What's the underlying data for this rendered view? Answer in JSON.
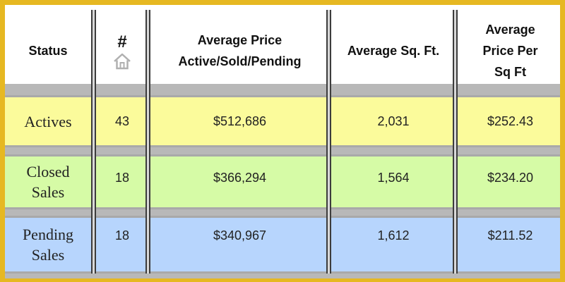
{
  "header": {
    "status": "Status",
    "count": "#",
    "count_icon": "house-icon",
    "avg_price_line1": "Average Price",
    "avg_price_line2": "Active/Sold/Pending",
    "avg_sqft": "Average Sq. Ft.",
    "ppsf_line1": "Average",
    "ppsf_line2": "Price Per",
    "ppsf_line3": "Sq Ft"
  },
  "rows": [
    {
      "status": "Actives",
      "status_line2": "",
      "count": "43",
      "avg_price": "$512,686",
      "avg_sqft": "2,031",
      "ppsf": "$252.43"
    },
    {
      "status": "Closed",
      "status_line2": "Sales",
      "count": "18",
      "avg_price": "$366,294",
      "avg_sqft": "1,564",
      "ppsf": "$234.20"
    },
    {
      "status": "Pending",
      "status_line2": "Sales",
      "count": "18",
      "avg_price": "$340,967",
      "avg_sqft": "1,612",
      "ppsf": "$211.52"
    }
  ],
  "colors": {
    "border": "#e6b822",
    "actives": "#fbfb9b",
    "closed": "#d6fba6",
    "pending": "#b7d5fd",
    "divider": "#3c3c3c"
  }
}
